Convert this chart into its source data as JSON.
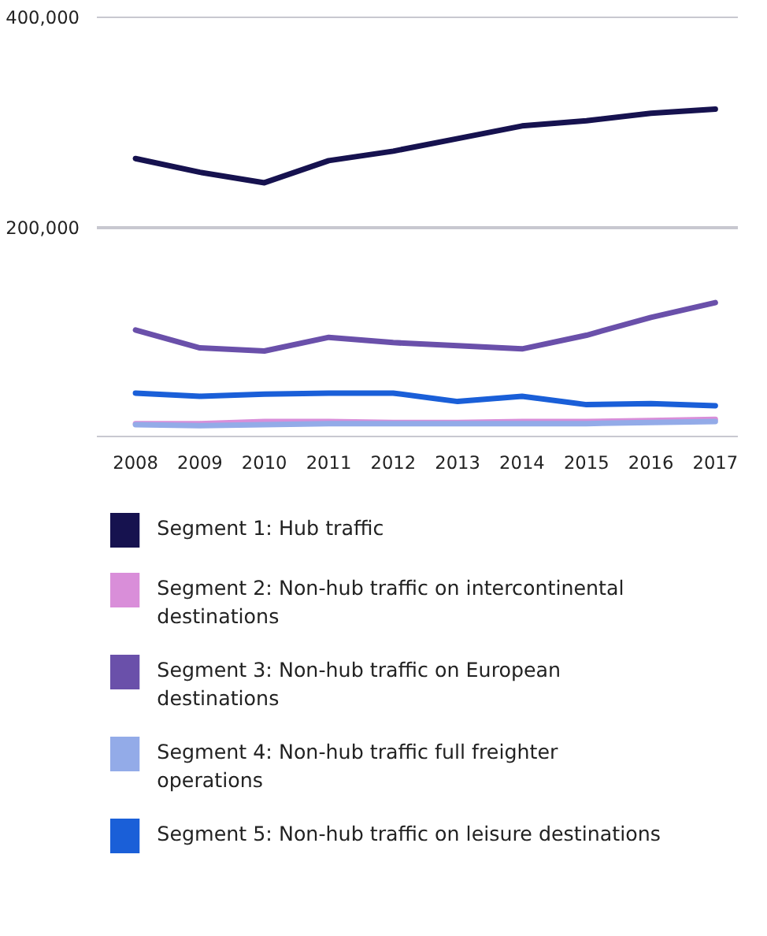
{
  "chart_data": {
    "type": "line",
    "x": [
      2008,
      2009,
      2010,
      2011,
      2012,
      2013,
      2014,
      2015,
      2016,
      2017
    ],
    "xlim": [
      2007.4,
      2017.35
    ],
    "xticks": [
      2008,
      2009,
      2010,
      2011,
      2012,
      2013,
      2014,
      2015,
      2016,
      2017
    ],
    "ylim": [
      0,
      400000
    ],
    "yticks": [
      {
        "value": 0,
        "label": null
      },
      {
        "value": 200000,
        "label": "200,000"
      },
      {
        "value": 400000,
        "label": "400,000"
      }
    ],
    "grid": "y",
    "legend": "bottom",
    "line_style": "solid",
    "marker": "none",
    "series": [
      {
        "name": "Segment 1: Hub traffic",
        "color": "#16124f",
        "values": [
          265000,
          252000,
          242000,
          263000,
          272000,
          284000,
          296000,
          301000,
          308000,
          312000
        ]
      },
      {
        "name": "Segment 2: Non-hub traffic on intercontinental destinations",
        "color": "#d98ed9",
        "values": [
          13000,
          13000,
          15000,
          15000,
          14000,
          14000,
          15000,
          15000,
          16000,
          17000
        ]
      },
      {
        "name": "Segment 3: Non-hub traffic on European destinations",
        "color": "#6a50aa",
        "values": [
          102000,
          85000,
          82000,
          95000,
          90000,
          87000,
          84000,
          97000,
          114000,
          128000
        ]
      },
      {
        "name": "Segment 4: Non-hub traffic full freighter operations",
        "color": "#93abe8",
        "values": [
          12000,
          11000,
          12000,
          13000,
          13000,
          13000,
          13000,
          13000,
          14000,
          15000
        ]
      },
      {
        "name": "Segment 5: Non-hub traffic on leisure destinations",
        "color": "#1a5fd8",
        "values": [
          42000,
          39000,
          41000,
          42000,
          42000,
          34000,
          39000,
          31000,
          32000,
          30000
        ]
      }
    ]
  }
}
